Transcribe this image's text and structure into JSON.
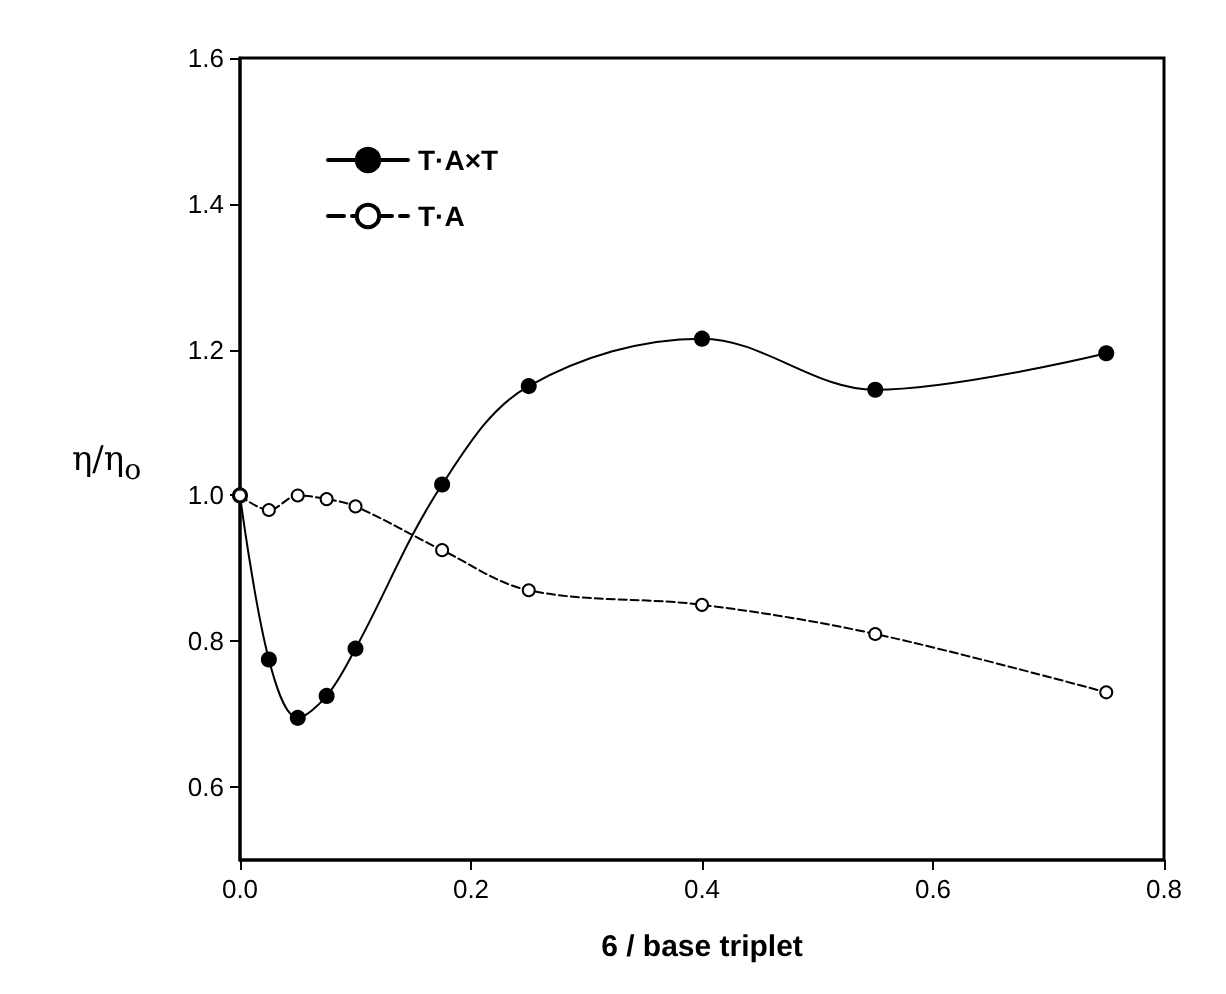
{
  "chart_data": {
    "type": "line",
    "xlabel": "6 / base triplet",
    "ylabel": "η/η$_{o}$",
    "x": [
      0,
      0.025,
      0.05,
      0.075,
      0.1,
      0.175,
      0.25,
      0.4,
      0.55,
      0.75
    ],
    "series": [
      {
        "name": "T·A×T",
        "color": "#000000",
        "marker": "circle",
        "line_style": "solid",
        "values": [
          1.0,
          0.775,
          0.695,
          0.725,
          0.79,
          1.015,
          1.15,
          1.215,
          1.145,
          1.195
        ]
      },
      {
        "name": "T·A",
        "color": "#000000",
        "marker": "circle",
        "line_style": "dashed",
        "values": [
          1.0,
          0.98,
          1.0,
          0.995,
          0.985,
          0.925,
          0.87,
          0.85,
          0.81,
          0.73
        ]
      }
    ],
    "xlim": [
      0,
      0.8
    ],
    "xticks": [
      {
        "value": 0,
        "label": "0.0"
      },
      0.2,
      0.4,
      0.6,
      0.8
    ],
    "ylim": [
      0.5,
      1.6
    ],
    "yticks": [
      0.6,
      0.8,
      {
        "value": 1,
        "label": "1.0"
      },
      1.2,
      1.4,
      1.6
    ],
    "grid": false,
    "legend": "top left"
  }
}
